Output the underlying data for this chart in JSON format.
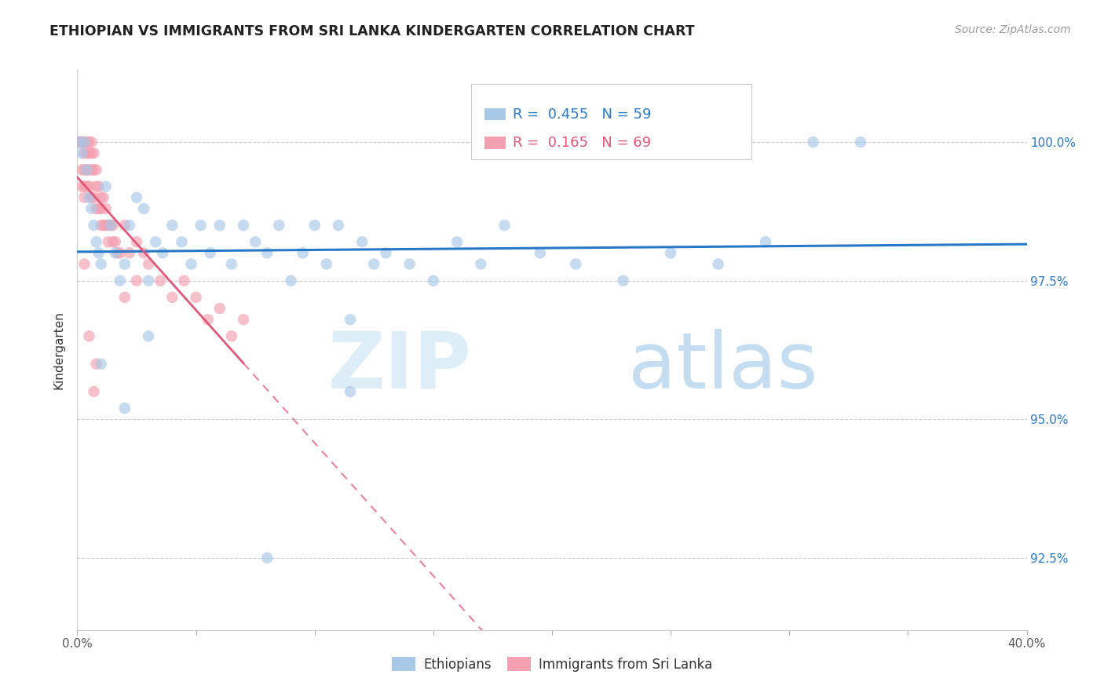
{
  "title": "ETHIOPIAN VS IMMIGRANTS FROM SRI LANKA KINDERGARTEN CORRELATION CHART",
  "source": "Source: ZipAtlas.com",
  "ylabel": "Kindergarten",
  "xlim": [
    0.0,
    0.4
  ],
  "ylim": [
    91.2,
    101.3
  ],
  "ytick_positions": [
    92.5,
    95.0,
    97.5,
    100.0
  ],
  "yticklabels": [
    "92.5%",
    "95.0%",
    "97.5%",
    "100.0%"
  ],
  "blue_R": 0.455,
  "blue_N": 59,
  "pink_R": 0.165,
  "pink_N": 69,
  "blue_color": "#a8c8e8",
  "pink_color": "#f4a0b0",
  "blue_line_color": "#2878c8",
  "pink_line_color": "#e05878",
  "legend_blue_label": "Ethiopians",
  "legend_pink_label": "Immigrants from Sri Lanka"
}
